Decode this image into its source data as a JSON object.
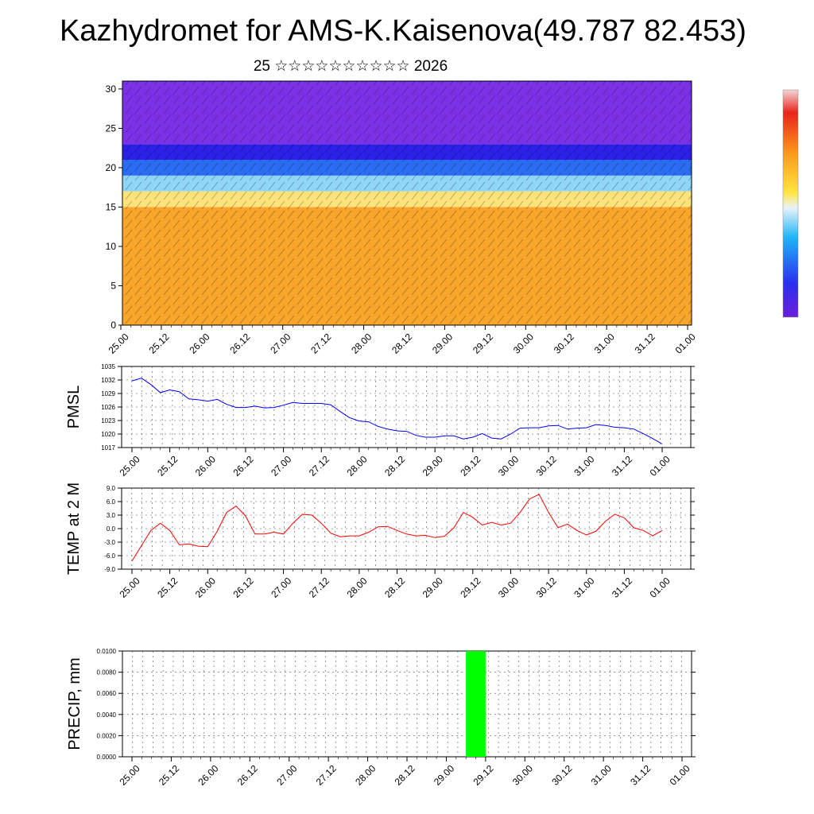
{
  "header": {
    "title": "Kazhydromet for AMS-K.Kaisenova(49.787 82.453)",
    "subtitle": "25 ☆☆☆☆☆☆☆☆☆☆ 2026"
  },
  "chart_data": [
    {
      "name": "cross-section",
      "type": "heatmap",
      "title": "",
      "xlabel": "",
      "ylabel": "",
      "x_tick_labels": [
        "25.00",
        "25.12",
        "26.00",
        "26.12",
        "27.00",
        "27.12",
        "28.00",
        "28.12",
        "29.00",
        "29.12",
        "30.00",
        "30.12",
        "31.00",
        "31.12",
        "01.00"
      ],
      "y_tick_labels": [
        "0",
        "5",
        "10",
        "15",
        "20",
        "25",
        "30"
      ],
      "ylim": [
        0,
        31
      ],
      "colorbar": "purple-blue-cyan-yellow-orange-red",
      "layers": [
        {
          "range": [
            0,
            15
          ],
          "color": "#f7a52b"
        },
        {
          "range": [
            15,
            17
          ],
          "color": "#ffe37a"
        },
        {
          "range": [
            17,
            19
          ],
          "color": "#8fd5f5"
        },
        {
          "range": [
            19,
            21
          ],
          "color": "#2a6cf2"
        },
        {
          "range": [
            21,
            23
          ],
          "color": "#2c1fe6"
        },
        {
          "range": [
            23,
            31
          ],
          "color": "#7d31e6"
        }
      ]
    },
    {
      "name": "pmsl",
      "type": "line",
      "ylabel": "PMSL",
      "x_tick_labels": [
        "25.00",
        "25.12",
        "26.00",
        "26.12",
        "27.00",
        "27.12",
        "28.00",
        "28.12",
        "29.00",
        "29.12",
        "30.00",
        "30.12",
        "31.00",
        "31.12",
        "01.00"
      ],
      "y_tick_labels": [
        "1017",
        "1020",
        "1023",
        "1026",
        "1029",
        "1032",
        "1035"
      ],
      "ylim": [
        1017,
        1035
      ],
      "series": [
        {
          "name": "PMSL",
          "color": "#0000ff",
          "values": [
            1031.8,
            1032.4,
            1031.0,
            1029.2,
            1029.8,
            1029.4,
            1027.8,
            1027.6,
            1027.3,
            1027.7,
            1026.6,
            1025.9,
            1025.9,
            1026.2,
            1025.8,
            1025.9,
            1026.4,
            1027.0,
            1026.8,
            1026.8,
            1026.8,
            1026.5,
            1025.0,
            1023.6,
            1022.9,
            1022.7,
            1021.7,
            1021.1,
            1020.7,
            1020.6,
            1019.7,
            1019.3,
            1019.3,
            1019.6,
            1019.6,
            1018.9,
            1019.3,
            1020.1,
            1019.1,
            1018.9,
            1020.0,
            1021.3,
            1021.4,
            1021.4,
            1021.8,
            1021.9,
            1021.1,
            1021.3,
            1021.4,
            1022.1,
            1021.9,
            1021.5,
            1021.4,
            1021.1,
            1020.1,
            1019.0,
            1017.8
          ]
        }
      ]
    },
    {
      "name": "temp2m",
      "type": "line",
      "ylabel": "TEMP at 2 M",
      "x_tick_labels": [
        "25.00",
        "25.12",
        "26.00",
        "26.12",
        "27.00",
        "27.12",
        "28.00",
        "28.12",
        "29.00",
        "29.12",
        "30.00",
        "30.12",
        "31.00",
        "31.12",
        "01.00"
      ],
      "y_tick_labels": [
        "-9.0",
        "-6.0",
        "-3.0",
        "0.0",
        "3.0",
        "6.0",
        "9.0"
      ],
      "ylim": [
        -9,
        9
      ],
      "series": [
        {
          "name": "T2M",
          "color": "#ff0000",
          "values": [
            -7.2,
            -3.8,
            -0.4,
            1.2,
            -0.4,
            -3.6,
            -3.4,
            -3.9,
            -4.0,
            -0.6,
            3.6,
            5.0,
            2.8,
            -1.2,
            -1.2,
            -0.8,
            -1.2,
            1.2,
            3.2,
            3.0,
            1.2,
            -1.0,
            -1.8,
            -1.6,
            -1.6,
            -0.8,
            0.4,
            0.5,
            -0.4,
            -1.2,
            -1.6,
            -1.5,
            -2.0,
            -1.7,
            0.2,
            3.6,
            2.5,
            0.8,
            1.4,
            0.8,
            1.2,
            3.6,
            6.6,
            7.6,
            3.6,
            0.2,
            1.0,
            -0.4,
            -1.4,
            -0.6,
            1.6,
            3.2,
            2.4,
            0.2,
            -0.4,
            -1.6,
            -0.4
          ]
        }
      ]
    },
    {
      "name": "precip",
      "type": "bar",
      "ylabel": "PRECIP, mm",
      "x_tick_labels": [
        "25.00",
        "25.12",
        "26.00",
        "26.12",
        "27.00",
        "27.12",
        "28.00",
        "28.12",
        "29.00",
        "29.12",
        "30.00",
        "30.12",
        "31.00",
        "31.12",
        "01.00"
      ],
      "y_tick_labels": [
        "0.0000",
        "0.0020",
        "0.0040",
        "0.0060",
        "0.0080",
        "0.0100"
      ],
      "ylim": [
        0,
        0.01
      ],
      "bar_color": "#00ff00",
      "bars": [
        {
          "x": 35,
          "value": 0.01
        }
      ]
    }
  ]
}
